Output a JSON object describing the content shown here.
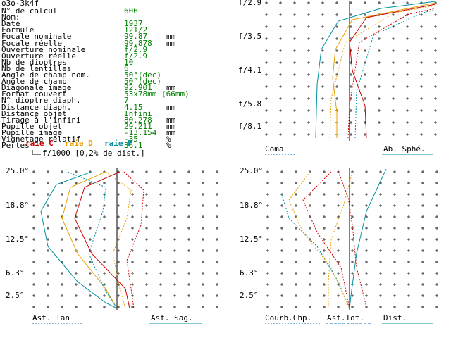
{
  "title": "o3o-3k4f",
  "params": [
    {
      "label": "N° de calcul",
      "value": "606",
      "unit": ""
    },
    {
      "label": "Nom:",
      "value": "",
      "unit": ""
    },
    {
      "label": "Date",
      "value": "1937",
      "unit": ""
    },
    {
      "label": "Formule",
      "value": "121/2",
      "unit": ""
    },
    {
      "label": "Focale nominale",
      "value": "99.87",
      "unit": "mm"
    },
    {
      "label": "Focale réelle",
      "value": "99.878",
      "unit": "mm"
    },
    {
      "label": "Ouverture nominale",
      "value": "f/2.9",
      "unit": ""
    },
    {
      "label": "Ouverture réelle",
      "value": "f/2.9",
      "unit": ""
    },
    {
      "label": "Nb de dioptres",
      "value": "10",
      "unit": ""
    },
    {
      "label": "Nb de lentilles",
      "value": "6",
      "unit": ""
    },
    {
      "label": "Angle de champ nom.",
      "value": "50°(dec)",
      "unit": ""
    },
    {
      "label": "Angle de champ",
      "value": "50°(dec)",
      "unit": ""
    },
    {
      "label": "Diagonale image",
      "value": "92.901",
      "unit": "mm"
    },
    {
      "label": "Format couvert",
      "value": "53x78mm (66mm)",
      "unit": ""
    },
    {
      "label": "N° dioptre diaph.",
      "value": "7",
      "unit": ""
    },
    {
      "label": "Distance diaph.",
      "value": "4.15",
      "unit": "mm"
    },
    {
      "label": "Distance objet",
      "value": "Infini",
      "unit": ""
    },
    {
      "label": "Tirage à l'infini",
      "value": "80.278",
      "unit": "mm"
    },
    {
      "label": "Pupille objet",
      "value": "29.211",
      "unit": "mm"
    },
    {
      "label": "Pupille image",
      "value": "-13.154",
      "unit": "mm"
    },
    {
      "label": "Vignetage relatif",
      "value": "-35",
      "unit": "%"
    },
    {
      "label": "Pertes",
      "value": "36.1",
      "unit": "%"
    }
  ],
  "legend": {
    "c": "raie C",
    "d": "raie D",
    "f": "raie F",
    "tol": "f/1000 [0,2% de dist.]",
    "colors": {
      "c": "#cc0000",
      "d": "#e8a000",
      "f": "#0090a0",
      "dash": "#0070c0"
    }
  },
  "coma_chart": {
    "ticks": [
      "f/2.9",
      "f/3.5",
      "f/4.1",
      "f/5.8",
      "f/8.1"
    ],
    "left_label": "Coma",
    "right_label": "Ab. Sphé."
  },
  "ast_chart": {
    "ticks": [
      "25.0°",
      "18.8°",
      "12.5°",
      "6.3°",
      "2.5°"
    ],
    "left_label": "Ast. Tan",
    "right_label": "Ast. Sag."
  },
  "curv_chart": {
    "ticks": [
      "25.0°",
      "18.8°",
      "12.5°",
      "6.3°",
      "2.5°"
    ],
    "labels": [
      "Courb.Chp.",
      "Ast.Tot.",
      "Dist."
    ]
  }
}
